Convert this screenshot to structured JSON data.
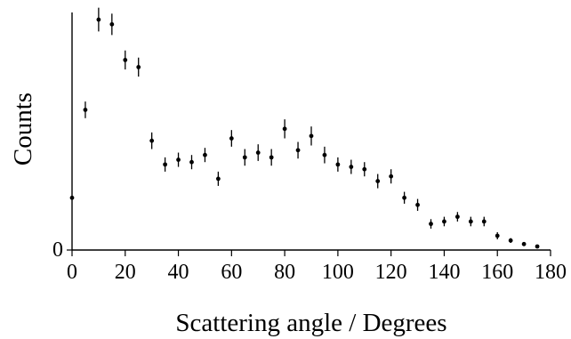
{
  "chart_data": {
    "type": "scatter",
    "title": "",
    "xlabel": "Scattering angle / Degrees",
    "ylabel": "Counts",
    "xlim": [
      0,
      180
    ],
    "ylim": [
      0,
      100
    ],
    "xticks": [
      0,
      20,
      40,
      60,
      80,
      100,
      120,
      140,
      160,
      180
    ],
    "yticks": [
      0
    ],
    "grid": false,
    "error_bars": true,
    "series": [
      {
        "points": [
          {
            "x": 0,
            "y": 22,
            "err": 0
          },
          {
            "x": 5,
            "y": 59,
            "err": 3.5
          },
          {
            "x": 10,
            "y": 97,
            "err": 5
          },
          {
            "x": 15,
            "y": 95,
            "err": 4.5
          },
          {
            "x": 20,
            "y": 80,
            "err": 4
          },
          {
            "x": 25,
            "y": 77,
            "err": 4
          },
          {
            "x": 30,
            "y": 46,
            "err": 3.5
          },
          {
            "x": 35,
            "y": 36,
            "err": 3
          },
          {
            "x": 40,
            "y": 38,
            "err": 3
          },
          {
            "x": 45,
            "y": 37,
            "err": 3
          },
          {
            "x": 50,
            "y": 40,
            "err": 3
          },
          {
            "x": 55,
            "y": 30,
            "err": 3
          },
          {
            "x": 60,
            "y": 47,
            "err": 3.5
          },
          {
            "x": 65,
            "y": 39,
            "err": 3.5
          },
          {
            "x": 70,
            "y": 41,
            "err": 3.5
          },
          {
            "x": 75,
            "y": 39,
            "err": 3.5
          },
          {
            "x": 80,
            "y": 51,
            "err": 4
          },
          {
            "x": 85,
            "y": 42,
            "err": 3.5
          },
          {
            "x": 90,
            "y": 48,
            "err": 4
          },
          {
            "x": 95,
            "y": 40,
            "err": 3.5
          },
          {
            "x": 100,
            "y": 36,
            "err": 3
          },
          {
            "x": 105,
            "y": 35,
            "err": 3
          },
          {
            "x": 110,
            "y": 34,
            "err": 3
          },
          {
            "x": 115,
            "y": 29,
            "err": 3
          },
          {
            "x": 120,
            "y": 31,
            "err": 3
          },
          {
            "x": 125,
            "y": 22,
            "err": 2.5
          },
          {
            "x": 130,
            "y": 19,
            "err": 2.5
          },
          {
            "x": 135,
            "y": 11,
            "err": 2
          },
          {
            "x": 140,
            "y": 12,
            "err": 2
          },
          {
            "x": 145,
            "y": 14,
            "err": 2
          },
          {
            "x": 150,
            "y": 12,
            "err": 2
          },
          {
            "x": 155,
            "y": 12,
            "err": 2
          },
          {
            "x": 160,
            "y": 6,
            "err": 1.5
          },
          {
            "x": 165,
            "y": 4,
            "err": 1
          },
          {
            "x": 170,
            "y": 2.5,
            "err": 0.8
          },
          {
            "x": 175,
            "y": 1.5,
            "err": 0.5
          }
        ]
      }
    ]
  }
}
